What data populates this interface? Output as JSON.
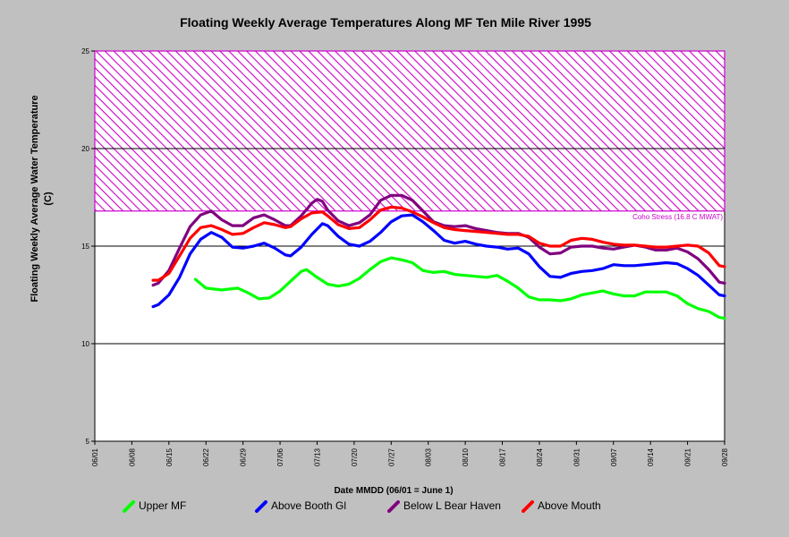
{
  "chart_data": {
    "type": "line",
    "title": "Floating Weekly Average Temperatures Along MF Ten Mile River 1995",
    "xlabel": "Date MMDD (06/01 = June 1)",
    "ylabel_line1": "Floating Weekly Average Water Temperature",
    "ylabel_line2": "(C)",
    "ylim": [
      5,
      25
    ],
    "xlim": [
      0,
      119
    ],
    "x_tick_labels": [
      "06/01",
      "06/08",
      "06/15",
      "06/22",
      "06/29",
      "07/06",
      "07/13",
      "07/20",
      "07/27",
      "08/03",
      "08/10",
      "08/17",
      "08/24",
      "08/31",
      "09/07",
      "09/14",
      "09/21",
      "09/28"
    ],
    "y_ticks": [
      5,
      10,
      15,
      20,
      25
    ],
    "stress_band": {
      "from": 16.8,
      "to": 25,
      "label": "Coho Stress (16.8 C MWAT)",
      "color": "#cc00cc"
    },
    "series": [
      {
        "name": "Upper MF",
        "color": "#00ff00",
        "points": [
          [
            19,
            13.3
          ],
          [
            21,
            12.85
          ],
          [
            24,
            12.75
          ],
          [
            27,
            12.85
          ],
          [
            29,
            12.6
          ],
          [
            31,
            12.3
          ],
          [
            33,
            12.35
          ],
          [
            35,
            12.7
          ],
          [
            37,
            13.2
          ],
          [
            39,
            13.7
          ],
          [
            40,
            13.8
          ],
          [
            42,
            13.4
          ],
          [
            44,
            13.05
          ],
          [
            46,
            12.95
          ],
          [
            48,
            13.05
          ],
          [
            50,
            13.35
          ],
          [
            52,
            13.8
          ],
          [
            54,
            14.2
          ],
          [
            56,
            14.4
          ],
          [
            58,
            14.3
          ],
          [
            60,
            14.15
          ],
          [
            62,
            13.75
          ],
          [
            64,
            13.65
          ],
          [
            66,
            13.7
          ],
          [
            68,
            13.55
          ],
          [
            70,
            13.5
          ],
          [
            72,
            13.45
          ],
          [
            74,
            13.4
          ],
          [
            76,
            13.5
          ],
          [
            78,
            13.2
          ],
          [
            80,
            12.85
          ],
          [
            82,
            12.4
          ],
          [
            84,
            12.25
          ],
          [
            86,
            12.25
          ],
          [
            88,
            12.2
          ],
          [
            90,
            12.3
          ],
          [
            92,
            12.5
          ],
          [
            94,
            12.6
          ],
          [
            96,
            12.7
          ],
          [
            98,
            12.55
          ],
          [
            100,
            12.45
          ],
          [
            102,
            12.45
          ],
          [
            104,
            12.65
          ],
          [
            106,
            12.65
          ],
          [
            108,
            12.65
          ],
          [
            110,
            12.45
          ],
          [
            112,
            12.05
          ],
          [
            114,
            11.8
          ],
          [
            116,
            11.65
          ],
          [
            118,
            11.35
          ],
          [
            119,
            11.3
          ]
        ]
      },
      {
        "name": "Above Booth Gl",
        "color": "#0000ff",
        "points": [
          [
            11,
            11.9
          ],
          [
            12,
            12.0
          ],
          [
            14,
            12.5
          ],
          [
            16,
            13.4
          ],
          [
            18,
            14.6
          ],
          [
            20,
            15.35
          ],
          [
            22,
            15.7
          ],
          [
            24,
            15.45
          ],
          [
            26,
            14.95
          ],
          [
            28,
            14.9
          ],
          [
            30,
            15.0
          ],
          [
            32,
            15.15
          ],
          [
            34,
            14.9
          ],
          [
            36,
            14.55
          ],
          [
            37,
            14.5
          ],
          [
            39,
            14.95
          ],
          [
            41,
            15.6
          ],
          [
            43,
            16.15
          ],
          [
            44,
            16.05
          ],
          [
            46,
            15.5
          ],
          [
            48,
            15.1
          ],
          [
            50,
            15.0
          ],
          [
            52,
            15.25
          ],
          [
            54,
            15.7
          ],
          [
            56,
            16.25
          ],
          [
            58,
            16.55
          ],
          [
            60,
            16.6
          ],
          [
            62,
            16.25
          ],
          [
            64,
            15.8
          ],
          [
            66,
            15.3
          ],
          [
            68,
            15.15
          ],
          [
            70,
            15.25
          ],
          [
            72,
            15.1
          ],
          [
            74,
            15.0
          ],
          [
            76,
            14.95
          ],
          [
            78,
            14.85
          ],
          [
            80,
            14.9
          ],
          [
            82,
            14.6
          ],
          [
            84,
            13.95
          ],
          [
            86,
            13.45
          ],
          [
            88,
            13.4
          ],
          [
            90,
            13.6
          ],
          [
            92,
            13.7
          ],
          [
            94,
            13.75
          ],
          [
            96,
            13.85
          ],
          [
            98,
            14.05
          ],
          [
            100,
            14.0
          ],
          [
            102,
            14.0
          ],
          [
            104,
            14.05
          ],
          [
            106,
            14.1
          ],
          [
            108,
            14.15
          ],
          [
            110,
            14.1
          ],
          [
            112,
            13.85
          ],
          [
            114,
            13.5
          ],
          [
            116,
            13.0
          ],
          [
            118,
            12.5
          ],
          [
            119,
            12.45
          ]
        ]
      },
      {
        "name": "Below L Bear Haven",
        "color": "#800080",
        "points": [
          [
            11,
            13.0
          ],
          [
            12,
            13.1
          ],
          [
            14,
            13.75
          ],
          [
            16,
            14.9
          ],
          [
            18,
            16.0
          ],
          [
            20,
            16.6
          ],
          [
            22,
            16.8
          ],
          [
            24,
            16.35
          ],
          [
            26,
            16.05
          ],
          [
            28,
            16.05
          ],
          [
            30,
            16.45
          ],
          [
            32,
            16.6
          ],
          [
            34,
            16.35
          ],
          [
            36,
            16.05
          ],
          [
            37,
            16.05
          ],
          [
            39,
            16.55
          ],
          [
            41,
            17.2
          ],
          [
            42,
            17.4
          ],
          [
            43,
            17.3
          ],
          [
            44,
            16.85
          ],
          [
            46,
            16.3
          ],
          [
            48,
            16.05
          ],
          [
            50,
            16.2
          ],
          [
            52,
            16.6
          ],
          [
            54,
            17.35
          ],
          [
            56,
            17.6
          ],
          [
            58,
            17.6
          ],
          [
            60,
            17.35
          ],
          [
            62,
            16.8
          ],
          [
            64,
            16.25
          ],
          [
            66,
            16.05
          ],
          [
            68,
            16.0
          ],
          [
            70,
            16.05
          ],
          [
            72,
            15.9
          ],
          [
            74,
            15.8
          ],
          [
            76,
            15.7
          ],
          [
            78,
            15.65
          ],
          [
            80,
            15.65
          ],
          [
            82,
            15.45
          ],
          [
            84,
            14.95
          ],
          [
            86,
            14.6
          ],
          [
            88,
            14.65
          ],
          [
            90,
            14.95
          ],
          [
            92,
            15.0
          ],
          [
            94,
            15.0
          ],
          [
            96,
            14.9
          ],
          [
            98,
            14.85
          ],
          [
            100,
            14.95
          ],
          [
            102,
            15.05
          ],
          [
            104,
            14.95
          ],
          [
            106,
            14.8
          ],
          [
            108,
            14.8
          ],
          [
            110,
            14.9
          ],
          [
            112,
            14.7
          ],
          [
            114,
            14.35
          ],
          [
            116,
            13.8
          ],
          [
            118,
            13.15
          ],
          [
            119,
            13.1
          ]
        ]
      },
      {
        "name": "Above Mouth",
        "color": "#ff0000",
        "points": [
          [
            11,
            13.25
          ],
          [
            12,
            13.25
          ],
          [
            14,
            13.6
          ],
          [
            16,
            14.5
          ],
          [
            18,
            15.4
          ],
          [
            20,
            15.95
          ],
          [
            22,
            16.05
          ],
          [
            24,
            15.85
          ],
          [
            26,
            15.6
          ],
          [
            28,
            15.65
          ],
          [
            30,
            15.95
          ],
          [
            32,
            16.2
          ],
          [
            34,
            16.1
          ],
          [
            36,
            15.95
          ],
          [
            37,
            16.0
          ],
          [
            39,
            16.4
          ],
          [
            41,
            16.7
          ],
          [
            43,
            16.75
          ],
          [
            44,
            16.55
          ],
          [
            46,
            16.1
          ],
          [
            48,
            15.9
          ],
          [
            50,
            15.95
          ],
          [
            52,
            16.35
          ],
          [
            54,
            16.85
          ],
          [
            56,
            17.0
          ],
          [
            58,
            16.95
          ],
          [
            60,
            16.75
          ],
          [
            62,
            16.5
          ],
          [
            64,
            16.2
          ],
          [
            66,
            15.95
          ],
          [
            68,
            15.85
          ],
          [
            70,
            15.8
          ],
          [
            72,
            15.75
          ],
          [
            74,
            15.7
          ],
          [
            76,
            15.65
          ],
          [
            78,
            15.6
          ],
          [
            80,
            15.6
          ],
          [
            82,
            15.5
          ],
          [
            84,
            15.15
          ],
          [
            86,
            15.0
          ],
          [
            88,
            15.0
          ],
          [
            90,
            15.3
          ],
          [
            92,
            15.4
          ],
          [
            94,
            15.35
          ],
          [
            96,
            15.2
          ],
          [
            98,
            15.1
          ],
          [
            100,
            15.05
          ],
          [
            102,
            15.05
          ],
          [
            104,
            15.0
          ],
          [
            106,
            14.95
          ],
          [
            108,
            14.95
          ],
          [
            110,
            15.0
          ],
          [
            112,
            15.05
          ],
          [
            114,
            15.0
          ],
          [
            116,
            14.65
          ],
          [
            118,
            14.0
          ],
          [
            119,
            13.95
          ]
        ]
      }
    ]
  }
}
